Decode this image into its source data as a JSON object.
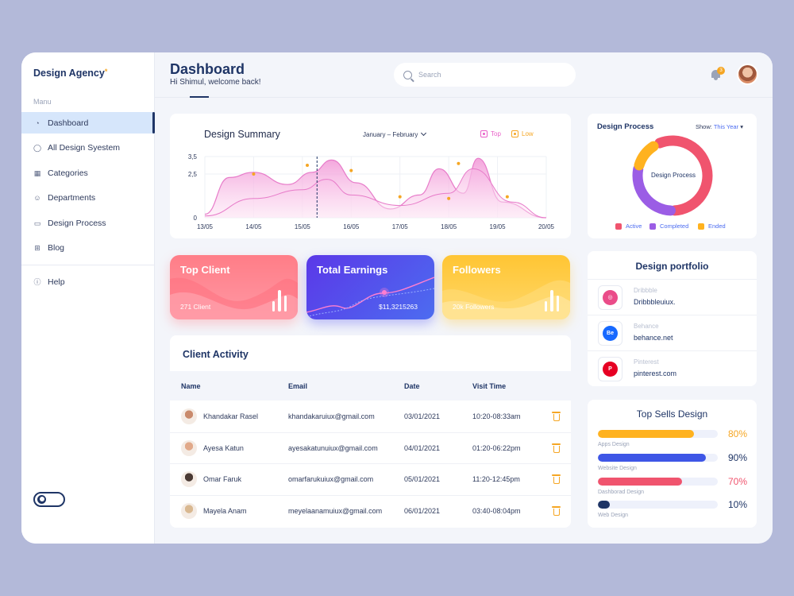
{
  "brand": {
    "name": "Design Agency",
    "star": "*"
  },
  "sidebar": {
    "menu_label": "Manu",
    "items": [
      {
        "label": "Dashboard",
        "icon": "pie-icon"
      },
      {
        "label": "All Design Syestem",
        "icon": "chat-icon"
      },
      {
        "label": "Categories",
        "icon": "grid-icon"
      },
      {
        "label": "Departments",
        "icon": "people-icon"
      },
      {
        "label": "Design Process",
        "icon": "card-icon"
      },
      {
        "label": "Blog",
        "icon": "plus-box-icon"
      }
    ],
    "help": {
      "label": "Help",
      "icon": "info-icon"
    }
  },
  "header": {
    "title": "Dashboard",
    "subtitle": "Hi Shimul, welcome back!",
    "search_placeholder": "Search",
    "notification_count": "3"
  },
  "summary": {
    "title": "Design Summary",
    "range": "January – February",
    "legend": [
      {
        "label": "Top",
        "color": "#e85fc8"
      },
      {
        "label": "Low",
        "color": "#f5a623"
      }
    ]
  },
  "chart_data": {
    "type": "area",
    "title": "Design Summary",
    "x_ticks": [
      "13/05",
      "14/05",
      "15/05",
      "16/05",
      "17/05",
      "18/05",
      "19/05",
      "20/05"
    ],
    "y_ticks": [
      "0",
      "2,5",
      "3,5"
    ],
    "series": [
      {
        "name": "Top",
        "color": "#f2a6dc",
        "points": [
          [
            0,
            0.2
          ],
          [
            0.5,
            2.3
          ],
          [
            1,
            2.6
          ],
          [
            1.7,
            1.9
          ],
          [
            2.2,
            2.6
          ],
          [
            2.6,
            3.3
          ],
          [
            3.1,
            2.0
          ],
          [
            3.8,
            0.5
          ],
          [
            4.4,
            1.3
          ],
          [
            4.8,
            2.8
          ],
          [
            5.3,
            1.4
          ],
          [
            5.6,
            3.4
          ],
          [
            6.1,
            0.9
          ],
          [
            7,
            0
          ]
        ]
      },
      {
        "name": "Low",
        "color": "#f7bfe4",
        "points": [
          [
            0,
            0.1
          ],
          [
            1,
            1.1
          ],
          [
            2,
            1.6
          ],
          [
            2.5,
            2.2
          ],
          [
            3,
            1.3
          ],
          [
            4,
            0.7
          ],
          [
            5,
            1.4
          ],
          [
            5.5,
            2.8
          ],
          [
            6.3,
            0.9
          ],
          [
            7,
            0
          ]
        ]
      }
    ],
    "markers": [
      [
        1,
        2.5
      ],
      [
        2.1,
        3.0
      ],
      [
        3,
        2.7
      ],
      [
        4,
        1.2
      ],
      [
        5,
        1.1
      ],
      [
        5.2,
        3.1
      ],
      [
        6.2,
        1.2
      ]
    ],
    "highlight_x": 2.3,
    "ylim": [
      0,
      3.5
    ]
  },
  "stats": [
    {
      "title": "Top Client",
      "value": "271 Client"
    },
    {
      "title": "Total Earnings",
      "value": "$11,3215263"
    },
    {
      "title": "Followers",
      "value": "20k Followers"
    }
  ],
  "activity": {
    "title": "Client Activity",
    "columns": [
      "Name",
      "Email",
      "Date",
      "Visit Time"
    ],
    "rows": [
      {
        "name": "Khandakar Rasel",
        "email": "khandakaruiux@gmail.com",
        "date": "03/01/2021",
        "time": "10:20-08:33am",
        "avatar": "#c98a6c"
      },
      {
        "name": "Ayesa Katun",
        "email": "ayesakatunuiux@gmail.com",
        "date": "04/01/2021",
        "time": "01:20-06:22pm",
        "avatar": "#e1a98a"
      },
      {
        "name": "Omar Faruk",
        "email": "omarfarukuiux@gmail.com",
        "date": "05/01/2021",
        "time": "11:20-12:45pm",
        "avatar": "#4a3a34"
      },
      {
        "name": "Mayela Anam",
        "email": "meyelaanamuiux@gmail.com",
        "date": "06/01/2021",
        "time": "03:40-08:04pm",
        "avatar": "#d9b891"
      }
    ]
  },
  "process": {
    "title": "Design Process",
    "show_label": "Show:",
    "show_value": "This Year",
    "center_label": "Design Process",
    "legend": [
      {
        "label": "Active",
        "color": "#f0546e"
      },
      {
        "label": "Completed",
        "color": "#9b5de5"
      },
      {
        "label": "Ended",
        "color": "#ffb21f"
      }
    ],
    "segments": [
      {
        "name": "Active",
        "fraction": 0.55,
        "color": "#f0546e"
      },
      {
        "name": "Completed",
        "fraction": 0.27,
        "color": "#9b5de5"
      },
      {
        "name": "Ended",
        "fraction": 0.11,
        "color": "#ffb21f"
      }
    ]
  },
  "portfolio": {
    "title": "Design portfolio",
    "items": [
      {
        "name": "Dribbble",
        "url": "Dribbbleuiux.",
        "color": "#ea4c89",
        "glyph": "◎"
      },
      {
        "name": "Behance",
        "url": "behance.net",
        "color": "#1769ff",
        "glyph": "Be"
      },
      {
        "name": "Pinterest",
        "url": "pinterest.com",
        "color": "#e60023",
        "glyph": "P"
      }
    ]
  },
  "sells": {
    "title": "Top Sells Design",
    "items": [
      {
        "label": "Apps Design",
        "pct": "80%",
        "fill": 0.8,
        "color": "#ffb21f",
        "text_color": "#f5a623"
      },
      {
        "label": "Website Design",
        "pct": "90%",
        "fill": 0.9,
        "color": "#3e56e6",
        "text_color": "#1f3566"
      },
      {
        "label": "Dashborad Design",
        "pct": "70%",
        "fill": 0.7,
        "color": "#f0546e",
        "text_color": "#f0546e"
      },
      {
        "label": "Web Design",
        "pct": "10%",
        "fill": 0.1,
        "color": "#1f3566",
        "text_color": "#1f3566"
      }
    ]
  }
}
